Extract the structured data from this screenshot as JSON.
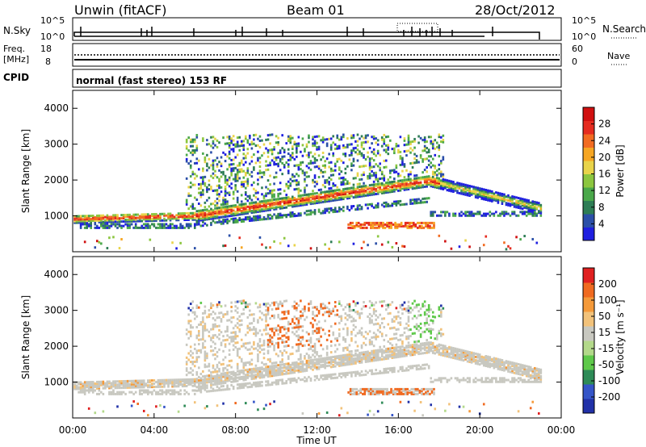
{
  "header": {
    "station": "Unwin (fitACF)",
    "beam": "Beam 01",
    "date": "28/Oct/2012"
  },
  "noise_panel": {
    "left_label": "N.Sky",
    "left_ticks": [
      "10^5",
      "10^0"
    ],
    "right_ticks": [
      "10^5",
      "10^0"
    ],
    "right_label": "N.Search"
  },
  "freq_panel": {
    "left_label_line1": "Freq.",
    "left_label_line2": "[MHz]",
    "left_ticks": [
      "18",
      "8"
    ],
    "right_ticks": [
      "60",
      "0"
    ],
    "right_label": "Nave"
  },
  "cpid": {
    "label": "CPID",
    "text": "normal (fast stereo) 153 RF"
  },
  "chart_data": [
    {
      "type": "heatmap",
      "name": "power",
      "ylabel": "Slant Range [km]",
      "ylim": [
        0,
        4500
      ],
      "yticks": [
        "1000",
        "2000",
        "3000",
        "4000"
      ],
      "xlim": [
        "00:00",
        "24:00"
      ],
      "colorbar": {
        "label": "Power [dB]",
        "ticks": [
          "4",
          "8",
          "12",
          "16",
          "20",
          "24",
          "28"
        ],
        "colors": [
          "#1f1fe0",
          "#2b4fa8",
          "#2e7d55",
          "#4aa84a",
          "#8cc63f",
          "#e9d44a",
          "#f6a623",
          "#f26b21",
          "#e52b1f",
          "#d01010"
        ],
        "range": [
          0,
          32
        ]
      },
      "features": [
        {
          "label": "main scatter band (strong)",
          "start": "00:00",
          "end": "23:00",
          "range_km_start": 1000,
          "range_km_end": 1300
        },
        {
          "label": "upper scatter",
          "start": "05:30",
          "end": "18:00",
          "range_km": [
            1400,
            3300
          ]
        }
      ]
    },
    {
      "type": "heatmap",
      "name": "velocity",
      "ylabel": "Slant Range [km]",
      "ylim": [
        0,
        4500
      ],
      "yticks": [
        "1000",
        "2000",
        "3000",
        "4000"
      ],
      "xlim": [
        "00:00",
        "24:00"
      ],
      "colorbar": {
        "label": "Velocity [m s⁻¹]",
        "ticks": [
          "200",
          "100",
          "50",
          "15",
          "-15",
          "-50",
          "-100",
          "-200"
        ],
        "colors": [
          "#2131a8",
          "#3555c8",
          "#2e8b57",
          "#5ec94a",
          "#b3d98a",
          "#c8c8c0",
          "#f2c27a",
          "#f59a3a",
          "#f06a20",
          "#e02020"
        ],
        "range": [
          -250,
          250
        ]
      }
    }
  ],
  "x_axis": {
    "ticks": [
      "00:00",
      "04:00",
      "08:00",
      "12:00",
      "16:00",
      "20:00",
      "00:00"
    ],
    "label": "Time UT"
  }
}
